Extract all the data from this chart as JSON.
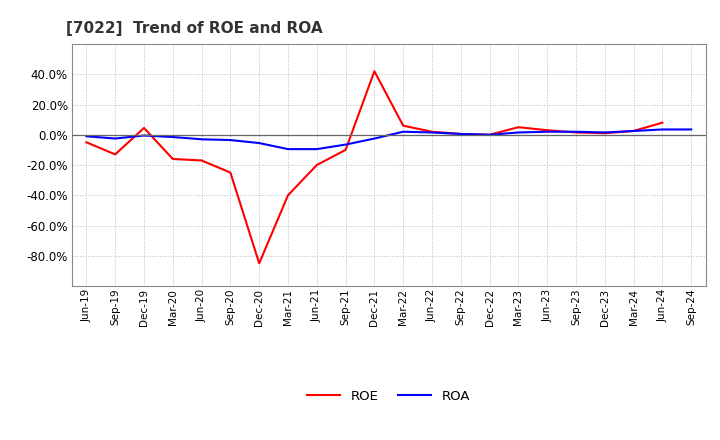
{
  "title": "[7022]  Trend of ROE and ROA",
  "x_labels": [
    "Jun-19",
    "Sep-19",
    "Dec-19",
    "Mar-20",
    "Jun-20",
    "Sep-20",
    "Dec-20",
    "Mar-21",
    "Jun-21",
    "Sep-21",
    "Dec-21",
    "Mar-22",
    "Jun-22",
    "Sep-22",
    "Dec-22",
    "Mar-23",
    "Jun-23",
    "Sep-23",
    "Dec-23",
    "Mar-24",
    "Jun-24",
    "Sep-24"
  ],
  "roe": [
    -5.0,
    -13.0,
    4.5,
    -16.0,
    -17.0,
    -25.0,
    -85.0,
    -40.0,
    -20.0,
    -10.0,
    42.0,
    6.0,
    2.0,
    0.5,
    0.0,
    5.0,
    3.0,
    1.5,
    1.0,
    2.5,
    8.0,
    null
  ],
  "roa": [
    -1.0,
    -2.5,
    -0.5,
    -1.5,
    -3.0,
    -3.5,
    -5.5,
    -9.5,
    -9.5,
    -6.5,
    -2.5,
    2.0,
    1.5,
    0.5,
    0.0,
    1.5,
    2.0,
    2.0,
    1.5,
    2.5,
    3.5,
    3.5
  ],
  "roe_color": "#ff0000",
  "roa_color": "#0000ff",
  "bg_color": "#ffffff",
  "plot_bg_color": "#ffffff",
  "grid_color": "#bbbbbb",
  "ylim": [
    -100,
    60
  ],
  "yticks": [
    -80.0,
    -60.0,
    -40.0,
    -20.0,
    0.0,
    20.0,
    40.0
  ],
  "legend_labels": [
    "ROE",
    "ROA"
  ],
  "title_fontsize": 11,
  "tick_fontsize": 7.5,
  "ytick_fontsize": 8.5
}
